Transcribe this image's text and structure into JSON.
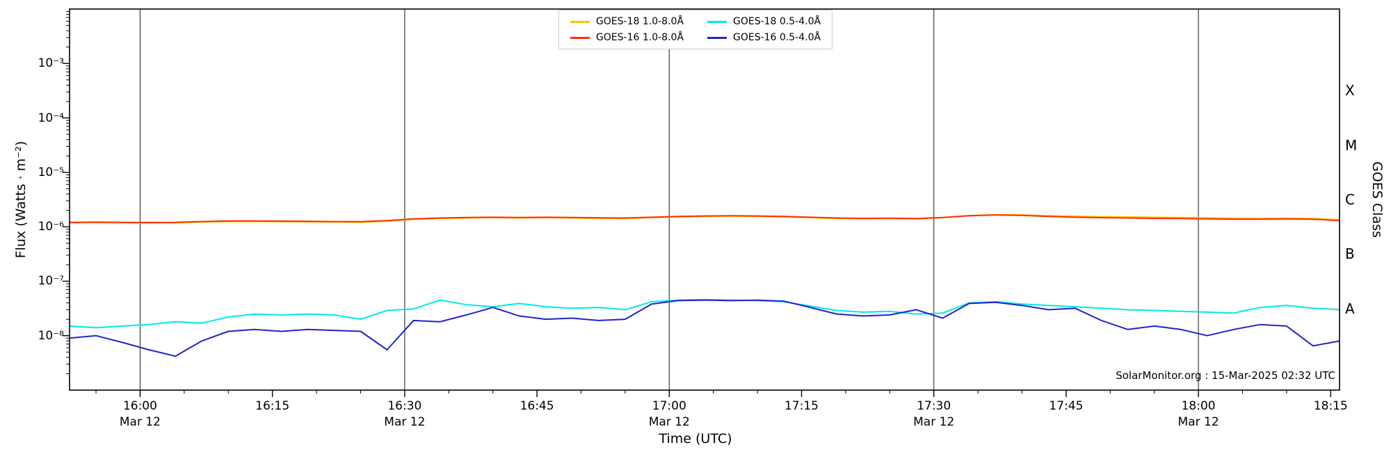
{
  "figure": {
    "xlabel": "Time (UTC)",
    "ylabel_left": "Flux (Watts · m⁻²)",
    "ylabel_right": "GOES Class",
    "annotation": "SolarMonitor.org : 15-Mar-2025 02:32 UTC"
  },
  "legend": {
    "items": [
      {
        "label": "GOES-18 1.0-8.0Å",
        "color": "#ffc800"
      },
      {
        "label": "GOES-16 1.0-8.0Å",
        "color": "#ff2d00"
      },
      {
        "label": "GOES-18 0.5-4.0Å",
        "color": "#00e8e8"
      },
      {
        "label": "GOES-16 0.5-4.0Å",
        "color": "#2222cc"
      }
    ]
  },
  "chart_data": {
    "type": "line",
    "title": "",
    "xlabel": "Time (UTC)",
    "ylabel": "Flux (Watts · m⁻²)",
    "ylabel_right": "GOES Class",
    "x_axis_date": "Mar 12",
    "x_domain_minutes": [
      952,
      1096
    ],
    "y_domain": [
      1e-09,
      0.01
    ],
    "y_scale": "log",
    "grid": "vertical-only",
    "legend_position": "top-center",
    "x_tick_minutes": [
      960,
      975,
      990,
      1005,
      1020,
      1035,
      1050,
      1065,
      1080,
      1095
    ],
    "x_tick_labels": [
      "16:00",
      "16:15",
      "16:30",
      "16:45",
      "17:00",
      "17:15",
      "17:30",
      "17:45",
      "18:00",
      "18:15"
    ],
    "date_tick_minutes": [
      960,
      990,
      1020,
      1050,
      1080
    ],
    "grid_minutes": [
      960,
      990,
      1020,
      1050,
      1080
    ],
    "y_tick_exponents": [
      -3,
      -4,
      -5,
      -6,
      -7,
      -8
    ],
    "y_tick_labels": [
      "10⁻³",
      "10⁻⁴",
      "10⁻⁵",
      "10⁻⁶",
      "10⁻⁷",
      "10⁻⁸"
    ],
    "goes_class_letters": [
      "X",
      "M",
      "C",
      "B",
      "A"
    ],
    "goes_class_mid_exponents": [
      -3.5,
      -4.5,
      -5.5,
      -6.5,
      -7.5
    ],
    "x_minutes": [
      952,
      955,
      958,
      961,
      964,
      967,
      970,
      973,
      976,
      979,
      982,
      985,
      988,
      991,
      994,
      997,
      1000,
      1003,
      1006,
      1009,
      1012,
      1015,
      1018,
      1021,
      1024,
      1027,
      1030,
      1033,
      1036,
      1039,
      1042,
      1045,
      1048,
      1051,
      1054,
      1057,
      1060,
      1063,
      1066,
      1069,
      1072,
      1075,
      1078,
      1081,
      1084,
      1087,
      1090,
      1093,
      1096
    ],
    "series": [
      {
        "name": "GOES-18 1.0-8.0Å",
        "color": "#ffc800",
        "scale": 1e-06,
        "values": [
          1.18,
          1.19,
          1.18,
          1.17,
          1.18,
          1.22,
          1.25,
          1.25,
          1.24,
          1.23,
          1.22,
          1.21,
          1.27,
          1.37,
          1.42,
          1.45,
          1.47,
          1.45,
          1.47,
          1.45,
          1.43,
          1.42,
          1.47,
          1.52,
          1.55,
          1.57,
          1.55,
          1.52,
          1.47,
          1.42,
          1.4,
          1.41,
          1.4,
          1.47,
          1.6,
          1.67,
          1.65,
          1.6,
          1.57,
          1.54,
          1.52,
          1.5,
          1.48,
          1.46,
          1.44,
          1.43,
          1.44,
          1.42,
          1.35
        ]
      },
      {
        "name": "GOES-16 1.0-8.0Å",
        "color": "#ff2d00",
        "scale": 1e-06,
        "values": [
          1.2,
          1.22,
          1.21,
          1.2,
          1.21,
          1.25,
          1.28,
          1.28,
          1.27,
          1.26,
          1.25,
          1.24,
          1.3,
          1.4,
          1.45,
          1.48,
          1.5,
          1.48,
          1.5,
          1.48,
          1.46,
          1.45,
          1.5,
          1.55,
          1.58,
          1.6,
          1.58,
          1.55,
          1.5,
          1.45,
          1.43,
          1.44,
          1.42,
          1.48,
          1.6,
          1.65,
          1.62,
          1.55,
          1.5,
          1.47,
          1.45,
          1.43,
          1.42,
          1.4,
          1.38,
          1.38,
          1.4,
          1.38,
          1.3
        ]
      },
      {
        "name": "GOES-18 0.5-4.0Å",
        "color": "#00e8e8",
        "scale": 1e-08,
        "values": [
          1.5,
          1.4,
          1.5,
          1.6,
          1.8,
          1.7,
          2.2,
          2.5,
          2.4,
          2.5,
          2.4,
          2.0,
          2.9,
          3.1,
          4.5,
          3.7,
          3.4,
          3.9,
          3.4,
          3.2,
          3.3,
          3.0,
          4.2,
          4.5,
          4.6,
          4.5,
          4.4,
          4.2,
          3.5,
          2.9,
          2.7,
          2.8,
          2.5,
          2.6,
          4.0,
          4.2,
          3.8,
          3.6,
          3.4,
          3.2,
          3.0,
          2.9,
          2.8,
          2.7,
          2.6,
          3.3,
          3.6,
          3.2,
          3.0
        ]
      },
      {
        "name": "GOES-16 0.5-4.0Å",
        "color": "#2222cc",
        "scale": 1e-08,
        "values": [
          0.9,
          1.0,
          0.75,
          0.55,
          0.42,
          0.8,
          1.2,
          1.3,
          1.2,
          1.3,
          1.25,
          1.2,
          0.55,
          1.9,
          1.8,
          2.4,
          3.3,
          2.3,
          2.0,
          2.1,
          1.9,
          2.0,
          3.8,
          4.4,
          4.5,
          4.4,
          4.5,
          4.3,
          3.3,
          2.5,
          2.3,
          2.4,
          3.0,
          2.1,
          3.9,
          4.1,
          3.6,
          3.0,
          3.2,
          1.9,
          1.3,
          1.5,
          1.3,
          1.0,
          1.3,
          1.6,
          1.5,
          0.65,
          0.8
        ]
      }
    ]
  }
}
